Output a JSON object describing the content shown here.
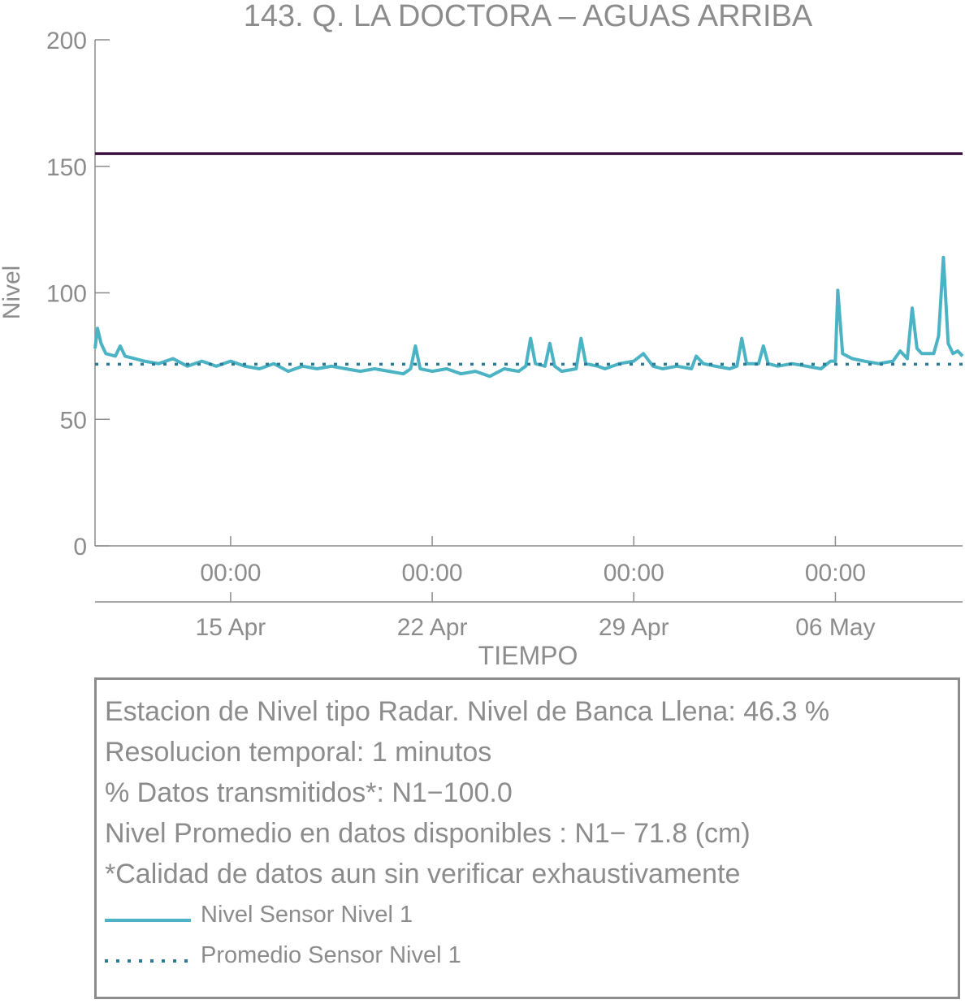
{
  "chart_data": {
    "type": "line",
    "title": "143. Q. LA DOCTORA – AGUAS ARRIBA",
    "xlabel": "TIEMPO",
    "ylabel": "Nivel",
    "ylim": [
      0,
      200
    ],
    "yticks": [
      "0",
      "50",
      "100",
      "150",
      "200"
    ],
    "xlim": [
      "2024-04-10T07:00",
      "2024-05-10T10:00"
    ],
    "xticks": [
      {
        "time": "2024-04-15T00:00",
        "hour_label": "00:00",
        "date_label": "15 Apr"
      },
      {
        "time": "2024-04-22T00:00",
        "hour_label": "00:00",
        "date_label": "22 Apr"
      },
      {
        "time": "2024-04-29T00:00",
        "hour_label": "00:00",
        "date_label": "29 Apr"
      },
      {
        "time": "2024-05-06T00:00",
        "hour_label": "00:00",
        "date_label": "06 May"
      }
    ],
    "reference_lines": [
      {
        "value": 155,
        "color": "#3b0f3f",
        "style": "solid"
      }
    ],
    "series": [
      {
        "name": "Nivel Sensor Nivel 1",
        "color": "#4bb3c4",
        "style": "solid",
        "points": [
          [
            "2024-04-10T07:00",
            78
          ],
          [
            "2024-04-10T09:00",
            86
          ],
          [
            "2024-04-10T12:00",
            80
          ],
          [
            "2024-04-10T16:00",
            76
          ],
          [
            "2024-04-11T00:00",
            75
          ],
          [
            "2024-04-11T04:00",
            79
          ],
          [
            "2024-04-11T08:00",
            75
          ],
          [
            "2024-04-12T00:00",
            73
          ],
          [
            "2024-04-12T12:00",
            72
          ],
          [
            "2024-04-13T00:00",
            74
          ],
          [
            "2024-04-13T12:00",
            71
          ],
          [
            "2024-04-14T00:00",
            73
          ],
          [
            "2024-04-14T12:00",
            71
          ],
          [
            "2024-04-15T00:00",
            73
          ],
          [
            "2024-04-15T12:00",
            71
          ],
          [
            "2024-04-16T00:00",
            70
          ],
          [
            "2024-04-16T12:00",
            72
          ],
          [
            "2024-04-17T00:00",
            69
          ],
          [
            "2024-04-17T12:00",
            71
          ],
          [
            "2024-04-18T00:00",
            70
          ],
          [
            "2024-04-18T12:00",
            71
          ],
          [
            "2024-04-19T00:00",
            70
          ],
          [
            "2024-04-19T12:00",
            69
          ],
          [
            "2024-04-20T00:00",
            70
          ],
          [
            "2024-04-20T12:00",
            69
          ],
          [
            "2024-04-21T00:00",
            68
          ],
          [
            "2024-04-21T06:00",
            70
          ],
          [
            "2024-04-21T10:00",
            79
          ],
          [
            "2024-04-21T14:00",
            70
          ],
          [
            "2024-04-22T00:00",
            69
          ],
          [
            "2024-04-22T12:00",
            70
          ],
          [
            "2024-04-23T00:00",
            68
          ],
          [
            "2024-04-23T12:00",
            69
          ],
          [
            "2024-04-24T00:00",
            67
          ],
          [
            "2024-04-24T12:00",
            70
          ],
          [
            "2024-04-25T00:00",
            69
          ],
          [
            "2024-04-25T06:00",
            71
          ],
          [
            "2024-04-25T10:00",
            82
          ],
          [
            "2024-04-25T14:00",
            72
          ],
          [
            "2024-04-25T22:00",
            71
          ],
          [
            "2024-04-26T02:00",
            80
          ],
          [
            "2024-04-26T06:00",
            71
          ],
          [
            "2024-04-26T12:00",
            69
          ],
          [
            "2024-04-27T00:00",
            70
          ],
          [
            "2024-04-27T04:00",
            82
          ],
          [
            "2024-04-27T08:00",
            72
          ],
          [
            "2024-04-27T18:00",
            71
          ],
          [
            "2024-04-28T00:00",
            70
          ],
          [
            "2024-04-28T12:00",
            72
          ],
          [
            "2024-04-29T00:00",
            73
          ],
          [
            "2024-04-29T08:00",
            76
          ],
          [
            "2024-04-29T16:00",
            71
          ],
          [
            "2024-04-30T00:00",
            70
          ],
          [
            "2024-04-30T12:00",
            71
          ],
          [
            "2024-05-01T00:00",
            70
          ],
          [
            "2024-05-01T04:00",
            75
          ],
          [
            "2024-05-01T10:00",
            72
          ],
          [
            "2024-05-01T20:00",
            71
          ],
          [
            "2024-05-02T08:00",
            70
          ],
          [
            "2024-05-02T14:00",
            71
          ],
          [
            "2024-05-02T18:00",
            82
          ],
          [
            "2024-05-02T22:00",
            72
          ],
          [
            "2024-05-03T08:00",
            72
          ],
          [
            "2024-05-03T12:00",
            79
          ],
          [
            "2024-05-03T16:00",
            72
          ],
          [
            "2024-05-04T00:00",
            71
          ],
          [
            "2024-05-04T12:00",
            72
          ],
          [
            "2024-05-05T00:00",
            71
          ],
          [
            "2024-05-05T12:00",
            70
          ],
          [
            "2024-05-05T20:00",
            73
          ],
          [
            "2024-05-06T00:00",
            73
          ],
          [
            "2024-05-06T02:00",
            101
          ],
          [
            "2024-05-06T06:00",
            76
          ],
          [
            "2024-05-06T14:00",
            74
          ],
          [
            "2024-05-07T00:00",
            73
          ],
          [
            "2024-05-07T12:00",
            72
          ],
          [
            "2024-05-08T00:00",
            73
          ],
          [
            "2024-05-08T06:00",
            77
          ],
          [
            "2024-05-08T12:00",
            74
          ],
          [
            "2024-05-08T16:00",
            94
          ],
          [
            "2024-05-08T20:00",
            78
          ],
          [
            "2024-05-09T00:00",
            76
          ],
          [
            "2024-05-09T10:00",
            76
          ],
          [
            "2024-05-09T14:00",
            83
          ],
          [
            "2024-05-09T18:00",
            114
          ],
          [
            "2024-05-09T22:00",
            80
          ],
          [
            "2024-05-10T02:00",
            76
          ],
          [
            "2024-05-10T06:00",
            77
          ],
          [
            "2024-05-10T10:00",
            75
          ]
        ]
      },
      {
        "name": "Promedio Sensor Nivel 1",
        "color": "#2b7a96",
        "style": "dotted",
        "constant": 71.8
      }
    ]
  },
  "info": {
    "lines": [
      "Estacion de Nivel tipo Radar. Nivel de Banca Llena: 46.3 %",
      "Resolucion temporal: 1 minutos",
      "% Datos transmitidos*: N1−100.0",
      "Nivel Promedio en datos disponibles : N1− 71.8 (cm)",
      "*Calidad de datos aun sin verificar exhaustivamente"
    ]
  }
}
